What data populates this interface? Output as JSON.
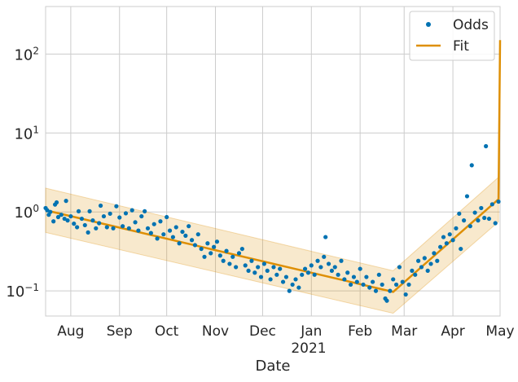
{
  "chart_data": {
    "type": "scatter",
    "title": "",
    "xlabel": "Date",
    "ylabel": "",
    "yscale": "log",
    "ylim": [
      0.048,
      400
    ],
    "xlim": [
      "2020-07-16",
      "2021-05-01"
    ],
    "grid": true,
    "legend_position": "top-right",
    "x_ticks": [
      {
        "date": "2020-08-01",
        "label": "Aug"
      },
      {
        "date": "2020-09-01",
        "label": "Sep"
      },
      {
        "date": "2020-10-01",
        "label": "Oct"
      },
      {
        "date": "2020-11-01",
        "label": "Nov"
      },
      {
        "date": "2020-12-01",
        "label": "Dec"
      },
      {
        "date": "2021-01-01",
        "label": "Jan"
      },
      {
        "date": "2021-02-01",
        "label": "Feb"
      },
      {
        "date": "2021-03-01",
        "label": "Mar"
      },
      {
        "date": "2021-04-01",
        "label": "Apr"
      },
      {
        "date": "2021-05-01",
        "label": "May"
      }
    ],
    "x_year_label": {
      "date": "2021-01-01",
      "label": "2021"
    },
    "y_ticks": [
      {
        "value": 0.1,
        "base": "10",
        "exp": "−1"
      },
      {
        "value": 1,
        "base": "10",
        "exp": "0"
      },
      {
        "value": 10,
        "base": "10",
        "exp": "1"
      },
      {
        "value": 100,
        "base": "10",
        "exp": "2"
      }
    ],
    "series": [
      {
        "name": "Odds",
        "kind": "scatter",
        "color": "#0072b2",
        "points": [
          [
            "2020-07-16",
            1.12
          ],
          [
            "2020-07-17",
            1.05
          ],
          [
            "2020-07-18",
            0.92
          ],
          [
            "2020-07-19",
            1.0
          ],
          [
            "2020-07-21",
            0.76
          ],
          [
            "2020-07-22",
            1.24
          ],
          [
            "2020-07-23",
            1.32
          ],
          [
            "2020-07-24",
            0.86
          ],
          [
            "2020-07-26",
            0.92
          ],
          [
            "2020-07-28",
            0.82
          ],
          [
            "2020-07-29",
            1.38
          ],
          [
            "2020-07-30",
            0.78
          ],
          [
            "2020-08-01",
            0.88
          ],
          [
            "2020-08-03",
            0.71
          ],
          [
            "2020-08-05",
            0.64
          ],
          [
            "2020-08-06",
            1.02
          ],
          [
            "2020-08-08",
            0.82
          ],
          [
            "2020-08-10",
            0.68
          ],
          [
            "2020-08-12",
            0.55
          ],
          [
            "2020-08-13",
            1.02
          ],
          [
            "2020-08-15",
            0.78
          ],
          [
            "2020-08-17",
            0.62
          ],
          [
            "2020-08-19",
            0.72
          ],
          [
            "2020-08-20",
            1.2
          ],
          [
            "2020-08-22",
            0.88
          ],
          [
            "2020-08-24",
            0.64
          ],
          [
            "2020-08-26",
            0.95
          ],
          [
            "2020-08-28",
            0.62
          ],
          [
            "2020-08-30",
            1.18
          ],
          [
            "2020-09-01",
            0.85
          ],
          [
            "2020-09-03",
            0.66
          ],
          [
            "2020-09-05",
            0.96
          ],
          [
            "2020-09-07",
            0.62
          ],
          [
            "2020-09-09",
            1.05
          ],
          [
            "2020-09-11",
            0.74
          ],
          [
            "2020-09-13",
            0.58
          ],
          [
            "2020-09-15",
            0.88
          ],
          [
            "2020-09-17",
            1.02
          ],
          [
            "2020-09-19",
            0.62
          ],
          [
            "2020-09-21",
            0.54
          ],
          [
            "2020-09-23",
            0.7
          ],
          [
            "2020-09-25",
            0.46
          ],
          [
            "2020-09-27",
            0.76
          ],
          [
            "2020-09-29",
            0.52
          ],
          [
            "2020-10-01",
            0.86
          ],
          [
            "2020-10-03",
            0.58
          ],
          [
            "2020-10-05",
            0.48
          ],
          [
            "2020-10-07",
            0.64
          ],
          [
            "2020-10-09",
            0.4
          ],
          [
            "2020-10-11",
            0.56
          ],
          [
            "2020-10-13",
            0.5
          ],
          [
            "2020-10-15",
            0.66
          ],
          [
            "2020-10-17",
            0.44
          ],
          [
            "2020-10-19",
            0.38
          ],
          [
            "2020-10-21",
            0.52
          ],
          [
            "2020-10-23",
            0.34
          ],
          [
            "2020-10-25",
            0.27
          ],
          [
            "2020-10-27",
            0.4
          ],
          [
            "2020-10-29",
            0.3
          ],
          [
            "2020-10-31",
            0.36
          ],
          [
            "2020-11-02",
            0.42
          ],
          [
            "2020-11-04",
            0.28
          ],
          [
            "2020-11-06",
            0.24
          ],
          [
            "2020-11-08",
            0.32
          ],
          [
            "2020-11-10",
            0.22
          ],
          [
            "2020-11-12",
            0.27
          ],
          [
            "2020-11-14",
            0.2
          ],
          [
            "2020-11-16",
            0.3
          ],
          [
            "2020-11-18",
            0.34
          ],
          [
            "2020-11-20",
            0.21
          ],
          [
            "2020-11-22",
            0.18
          ],
          [
            "2020-11-24",
            0.24
          ],
          [
            "2020-11-26",
            0.17
          ],
          [
            "2020-11-28",
            0.2
          ],
          [
            "2020-11-30",
            0.15
          ],
          [
            "2020-12-02",
            0.22
          ],
          [
            "2020-12-04",
            0.18
          ],
          [
            "2020-12-06",
            0.14
          ],
          [
            "2020-12-08",
            0.2
          ],
          [
            "2020-12-10",
            0.16
          ],
          [
            "2020-12-12",
            0.19
          ],
          [
            "2020-12-14",
            0.13
          ],
          [
            "2020-12-16",
            0.15
          ],
          [
            "2020-12-18",
            0.1
          ],
          [
            "2020-12-20",
            0.12
          ],
          [
            "2020-12-22",
            0.14
          ],
          [
            "2020-12-24",
            0.11
          ],
          [
            "2020-12-26",
            0.16
          ],
          [
            "2020-12-28",
            0.19
          ],
          [
            "2020-12-30",
            0.17
          ],
          [
            "2021-01-01",
            0.21
          ],
          [
            "2021-01-03",
            0.16
          ],
          [
            "2021-01-05",
            0.24
          ],
          [
            "2021-01-07",
            0.2
          ],
          [
            "2021-01-09",
            0.27
          ],
          [
            "2021-01-10",
            0.48
          ],
          [
            "2021-01-12",
            0.22
          ],
          [
            "2021-01-14",
            0.18
          ],
          [
            "2021-01-16",
            0.2
          ],
          [
            "2021-01-18",
            0.16
          ],
          [
            "2021-01-20",
            0.24
          ],
          [
            "2021-01-22",
            0.14
          ],
          [
            "2021-01-24",
            0.17
          ],
          [
            "2021-01-26",
            0.12
          ],
          [
            "2021-01-28",
            0.15
          ],
          [
            "2021-01-30",
            0.13
          ],
          [
            "2021-02-01",
            0.19
          ],
          [
            "2021-02-03",
            0.12
          ],
          [
            "2021-02-05",
            0.15
          ],
          [
            "2021-02-07",
            0.11
          ],
          [
            "2021-02-09",
            0.13
          ],
          [
            "2021-02-11",
            0.1
          ],
          [
            "2021-02-13",
            0.16
          ],
          [
            "2021-02-15",
            0.12
          ],
          [
            "2021-02-17",
            0.08
          ],
          [
            "2021-02-18",
            0.075
          ],
          [
            "2021-02-20",
            0.1
          ],
          [
            "2021-02-22",
            0.14
          ],
          [
            "2021-02-24",
            0.12
          ],
          [
            "2021-02-26",
            0.2
          ],
          [
            "2021-02-28",
            0.13
          ],
          [
            "2021-03-02",
            0.09
          ],
          [
            "2021-03-04",
            0.12
          ],
          [
            "2021-03-06",
            0.18
          ],
          [
            "2021-03-08",
            0.16
          ],
          [
            "2021-03-10",
            0.24
          ],
          [
            "2021-03-12",
            0.2
          ],
          [
            "2021-03-14",
            0.26
          ],
          [
            "2021-03-16",
            0.18
          ],
          [
            "2021-03-18",
            0.22
          ],
          [
            "2021-03-20",
            0.3
          ],
          [
            "2021-03-22",
            0.24
          ],
          [
            "2021-03-24",
            0.36
          ],
          [
            "2021-03-26",
            0.48
          ],
          [
            "2021-03-28",
            0.4
          ],
          [
            "2021-03-30",
            0.52
          ],
          [
            "2021-04-01",
            0.44
          ],
          [
            "2021-04-03",
            0.62
          ],
          [
            "2021-04-05",
            0.95
          ],
          [
            "2021-04-06",
            0.34
          ],
          [
            "2021-04-08",
            0.78
          ],
          [
            "2021-04-10",
            1.58
          ],
          [
            "2021-04-12",
            0.66
          ],
          [
            "2021-04-13",
            3.9
          ],
          [
            "2021-04-15",
            0.98
          ],
          [
            "2021-04-17",
            0.78
          ],
          [
            "2021-04-19",
            1.12
          ],
          [
            "2021-04-21",
            0.84
          ],
          [
            "2021-04-22",
            6.8
          ],
          [
            "2021-04-24",
            0.82
          ],
          [
            "2021-04-26",
            1.25
          ],
          [
            "2021-04-28",
            0.72
          ],
          [
            "2021-04-30",
            1.35
          ]
        ]
      },
      {
        "name": "Fit",
        "kind": "line",
        "color": "#de8f05",
        "points": [
          [
            "2020-07-16",
            1.05
          ],
          [
            "2021-02-22",
            0.097
          ],
          [
            "2021-04-30",
            1.45
          ],
          [
            "2021-05-01",
            150
          ]
        ]
      },
      {
        "name": "",
        "kind": "band",
        "color": "#de8f05",
        "lower": [
          [
            "2020-07-16",
            0.55
          ],
          [
            "2021-02-22",
            0.052
          ],
          [
            "2021-04-30",
            0.75
          ]
        ],
        "upper": [
          [
            "2020-07-16",
            2.0
          ],
          [
            "2021-02-22",
            0.18
          ],
          [
            "2021-04-30",
            2.75
          ]
        ]
      }
    ]
  }
}
